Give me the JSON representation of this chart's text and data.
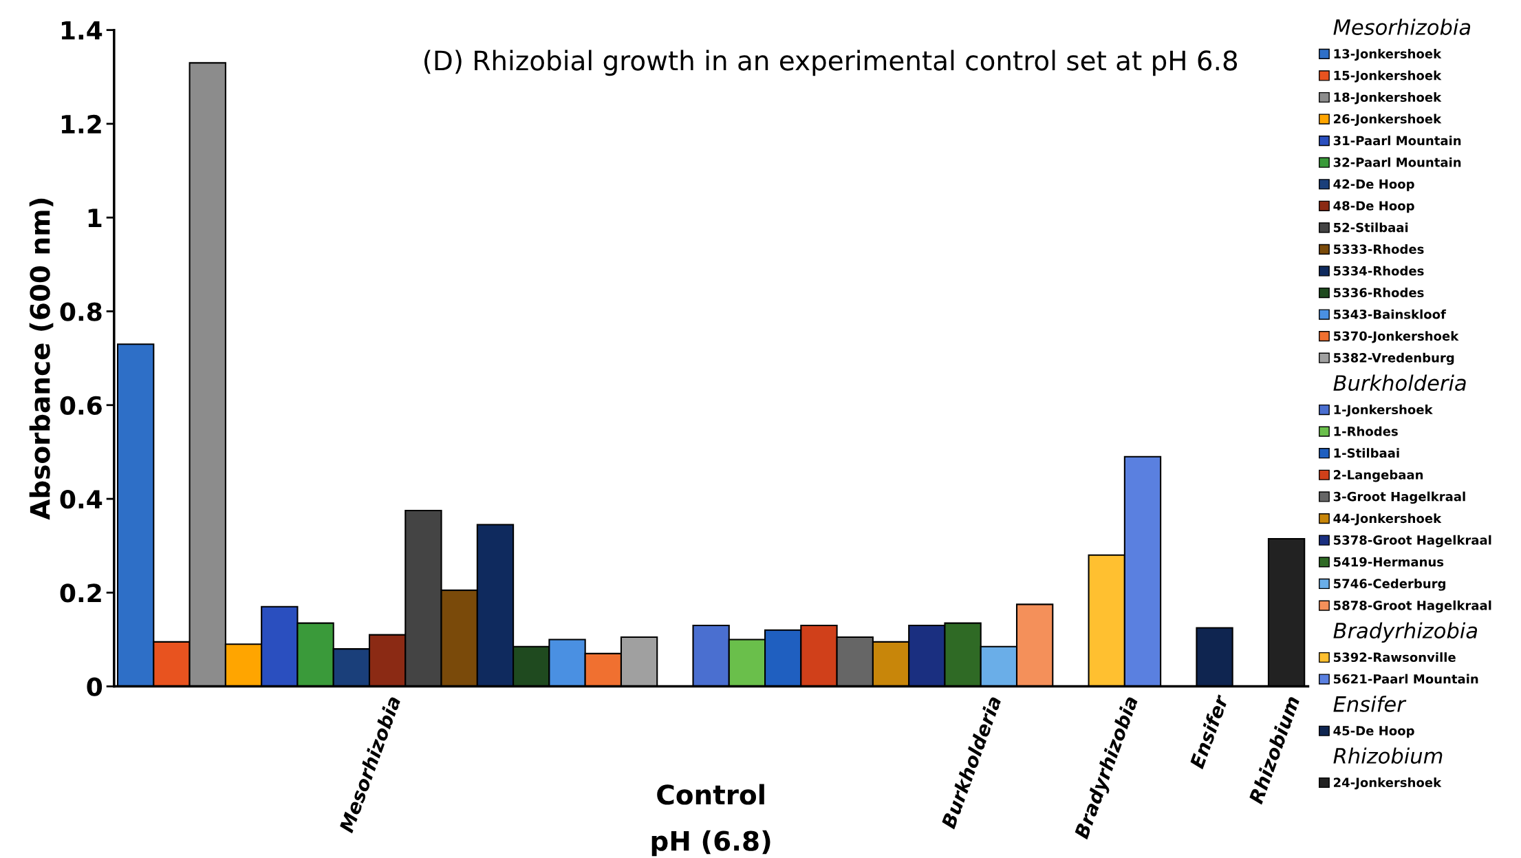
{
  "chart_data": {
    "type": "bar",
    "title": "(D) Rhizobial growth in an experimental control set at pH 6.8",
    "xlabel": "Control\npH (6.8)",
    "ylabel": "Absorbance (600 nm)",
    "categories": [
      "Mesorhizobia",
      "Burkholderia",
      "Bradyrhizobia",
      "Ensifer",
      "Rhizobium"
    ],
    "ylim": [
      0,
      1.4
    ],
    "yticks": [
      0,
      0.2,
      0.4,
      0.6,
      0.8,
      1,
      1.2,
      1.4
    ],
    "grid": false,
    "legend": "right",
    "series": [
      {
        "name": "13-Jonkershoek",
        "color": "#2e6fc7",
        "values": [
          0.73,
          null,
          null,
          null,
          null
        ]
      },
      {
        "name": "15-Jonkershoek",
        "color": "#e8531f",
        "values": [
          0.095,
          null,
          null,
          null,
          null
        ]
      },
      {
        "name": "18-Jonkershoek",
        "color": "#8c8c8c",
        "values": [
          1.33,
          null,
          null,
          null,
          null
        ]
      },
      {
        "name": "26-Jonkershoek",
        "color": "#ffa500",
        "values": [
          0.09,
          null,
          null,
          null,
          null
        ]
      },
      {
        "name": "31-Paarl Mountain",
        "color": "#2a4fbf",
        "values": [
          0.17,
          null,
          null,
          null,
          null
        ]
      },
      {
        "name": "32-Paarl Mountain",
        "color": "#3a9a3a",
        "values": [
          0.135,
          null,
          null,
          null,
          null
        ]
      },
      {
        "name": "42-De Hoop",
        "color": "#1a3f7a",
        "values": [
          0.08,
          null,
          null,
          null,
          null
        ]
      },
      {
        "name": "48-De Hoop",
        "color": "#8b2a14",
        "values": [
          0.11,
          null,
          null,
          null,
          null
        ]
      },
      {
        "name": "52-Stilbaai",
        "color": "#444444",
        "values": [
          0.375,
          null,
          null,
          null,
          null
        ]
      },
      {
        "name": "5333-Rhodes",
        "color": "#7a4a0a",
        "values": [
          0.205,
          null,
          null,
          null,
          null
        ]
      },
      {
        "name": "5334-Rhodes",
        "color": "#0f2a5e",
        "values": [
          0.345,
          null,
          null,
          null,
          null
        ]
      },
      {
        "name": "5336-Rhodes",
        "color": "#1f4a1f",
        "values": [
          0.085,
          null,
          null,
          null,
          null
        ]
      },
      {
        "name": "5343-Bainskloof",
        "color": "#4a90e2",
        "values": [
          0.1,
          null,
          null,
          null,
          null
        ]
      },
      {
        "name": "5370-Jonkershoek",
        "color": "#f07030",
        "values": [
          0.07,
          null,
          null,
          null,
          null
        ]
      },
      {
        "name": "5382-Vredenburg",
        "color": "#a0a0a0",
        "values": [
          0.105,
          null,
          null,
          null,
          null
        ]
      },
      {
        "name": "1-Jonkershoek",
        "color": "#4a6fd0",
        "values": [
          null,
          0.13,
          null,
          null,
          null
        ]
      },
      {
        "name": "1-Rhodes",
        "color": "#6abf4b",
        "values": [
          null,
          0.1,
          null,
          null,
          null
        ]
      },
      {
        "name": "1-Stilbaai",
        "color": "#1f5fc0",
        "values": [
          null,
          0.12,
          null,
          null,
          null
        ]
      },
      {
        "name": "2-Langebaan",
        "color": "#d0401a",
        "values": [
          null,
          0.13,
          null,
          null,
          null
        ]
      },
      {
        "name": "3-Groot Hagelkraal",
        "color": "#666666",
        "values": [
          null,
          0.105,
          null,
          null,
          null
        ]
      },
      {
        "name": "44-Jonkershoek",
        "color": "#c8860a",
        "values": [
          null,
          0.095,
          null,
          null,
          null
        ]
      },
      {
        "name": "5378-Groot Hagelkraal",
        "color": "#1a2f80",
        "values": [
          null,
          0.13,
          null,
          null,
          null
        ]
      },
      {
        "name": "5419-Hermanus",
        "color": "#2f6a25",
        "values": [
          null,
          0.135,
          null,
          null,
          null
        ]
      },
      {
        "name": "5746-Cederburg",
        "color": "#6aaee8",
        "values": [
          null,
          0.085,
          null,
          null,
          null
        ]
      },
      {
        "name": "5878-Groot Hagelkraal",
        "color": "#f4905a",
        "values": [
          null,
          0.175,
          null,
          null,
          null
        ]
      },
      {
        "name": "5392-Rawsonville",
        "color": "#ffc030",
        "values": [
          null,
          null,
          0.28,
          null,
          null
        ]
      },
      {
        "name": "5621-Paarl Mountain",
        "color": "#5a80e0",
        "values": [
          null,
          null,
          0.49,
          null,
          null
        ]
      },
      {
        "name": "45-De Hoop",
        "color": "#0f2550",
        "values": [
          null,
          null,
          null,
          0.125,
          null
        ]
      },
      {
        "name": "24-Jonkershoek",
        "color": "#222222",
        "values": [
          null,
          null,
          null,
          null,
          0.315
        ]
      }
    ]
  }
}
